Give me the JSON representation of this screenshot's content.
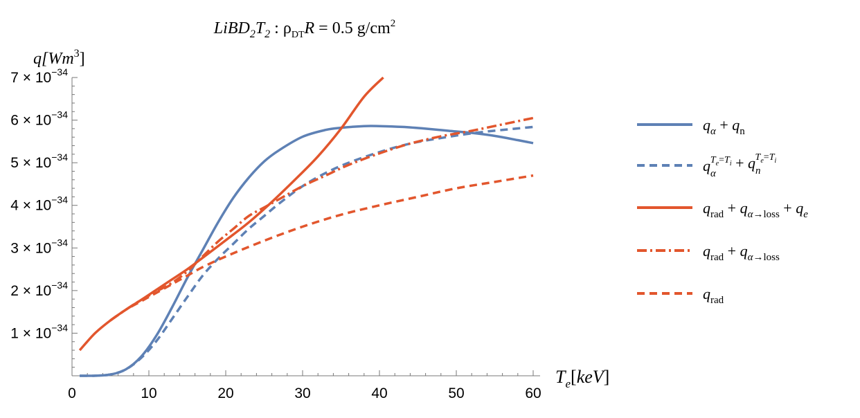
{
  "chart_data": {
    "type": "line",
    "title": "LiBD2T2 : ρDT R = 0.5 g/cm²",
    "xlabel": "Te[keV]",
    "ylabel": "q[Wm³]",
    "xlim": [
      0,
      60
    ],
    "ylim": [
      0,
      7e-34
    ],
    "x_ticks": [
      0,
      10,
      20,
      30,
      40,
      50,
      60
    ],
    "y_ticks": [
      {
        "value": 1e-34,
        "mant": "1",
        "exp": "−34"
      },
      {
        "value": 2e-34,
        "mant": "2",
        "exp": "−34"
      },
      {
        "value": 3e-34,
        "mant": "3",
        "exp": "−34"
      },
      {
        "value": 4e-34,
        "mant": "4",
        "exp": "−34"
      },
      {
        "value": 5e-34,
        "mant": "5",
        "exp": "−34"
      },
      {
        "value": 6e-34,
        "mant": "6",
        "exp": "−34"
      },
      {
        "value": 7e-34,
        "mant": "7",
        "exp": "−34"
      }
    ],
    "grid": false,
    "legend_position": "right",
    "series": [
      {
        "name": "qα + qn",
        "color": "#5e81b5",
        "dash": "solid",
        "x": [
          1,
          3,
          5,
          7,
          9,
          11,
          13,
          15,
          17,
          19,
          21,
          23,
          25,
          27,
          30,
          33,
          35,
          38,
          40,
          43,
          46,
          49,
          52,
          55,
          58,
          60
        ],
        "y": [
          0,
          2e-37,
          3e-36,
          1.5e-35,
          4.5e-35,
          9.5e-35,
          1.6e-34,
          2.3e-34,
          2.95e-34,
          3.6e-34,
          4.18e-34,
          4.65e-34,
          5.03e-34,
          5.3e-34,
          5.61e-34,
          5.77e-34,
          5.82e-34,
          5.86e-34,
          5.86e-34,
          5.84e-34,
          5.8e-34,
          5.75e-34,
          5.7e-34,
          5.63e-34,
          5.53e-34,
          5.46e-34
        ]
      },
      {
        "name": "qα^(Te=Ti) + qn^(Te=Ti)",
        "color": "#5e81b5",
        "dash": "dashed",
        "x": [
          1,
          3,
          5,
          7,
          9,
          11,
          13,
          15,
          17,
          19,
          21,
          23,
          25,
          27,
          30,
          33,
          36,
          40,
          44,
          48,
          52,
          56,
          60
        ],
        "y": [
          0,
          2e-37,
          3e-36,
          1.5e-35,
          4.2e-35,
          8.2e-35,
          1.33e-34,
          1.85e-34,
          2.35e-34,
          2.75e-34,
          3.1e-34,
          3.45e-34,
          3.75e-34,
          4.05e-34,
          4.45e-34,
          4.76e-34,
          5e-34,
          5.25e-34,
          5.45e-34,
          5.58e-34,
          5.69e-34,
          5.77e-34,
          5.84e-34
        ]
      },
      {
        "name": "qrad + qα→loss + qe",
        "color": "#e2562d",
        "dash": "solid",
        "x": [
          1,
          3,
          5,
          7,
          9,
          11,
          13,
          15,
          17,
          20,
          23,
          26,
          29,
          32,
          35,
          38,
          40.5
        ],
        "y": [
          6e-35,
          1e-34,
          1.3e-34,
          1.55e-34,
          1.78e-34,
          2.02e-34,
          2.26e-34,
          2.5e-34,
          2.77e-34,
          3.18e-34,
          3.6e-34,
          4.08e-34,
          4.6e-34,
          5.15e-34,
          5.8e-34,
          6.55e-34,
          7e-34
        ]
      },
      {
        "name": "qrad + qα→loss",
        "color": "#e2562d",
        "dash": "dashdot",
        "x": [
          5,
          7,
          9,
          11,
          13,
          15,
          17,
          19,
          21,
          23,
          25,
          27,
          30,
          33,
          36,
          40,
          44,
          48,
          52,
          56,
          60
        ],
        "y": [
          1.3e-34,
          1.55e-34,
          1.78e-34,
          1.98e-34,
          2.18e-34,
          2.45e-34,
          2.8e-34,
          3.15e-34,
          3.45e-34,
          3.75e-34,
          3.95e-34,
          4.15e-34,
          4.45e-34,
          4.7e-34,
          4.95e-34,
          5.22e-34,
          5.45e-34,
          5.62e-34,
          5.75e-34,
          5.9e-34,
          6.05e-34
        ]
      },
      {
        "name": "qrad",
        "color": "#e2562d",
        "dash": "dashed",
        "x": [
          5,
          7,
          9,
          11,
          13,
          15,
          17,
          20,
          25,
          30,
          35,
          40,
          45,
          50,
          55,
          60
        ],
        "y": [
          1.3e-34,
          1.55e-34,
          1.75e-34,
          1.95e-34,
          2.15e-34,
          2.35e-34,
          2.55e-34,
          2.8e-34,
          3.17e-34,
          3.5e-34,
          3.78e-34,
          4e-34,
          4.2e-34,
          4.4e-34,
          4.55e-34,
          4.7e-34
        ]
      }
    ]
  }
}
